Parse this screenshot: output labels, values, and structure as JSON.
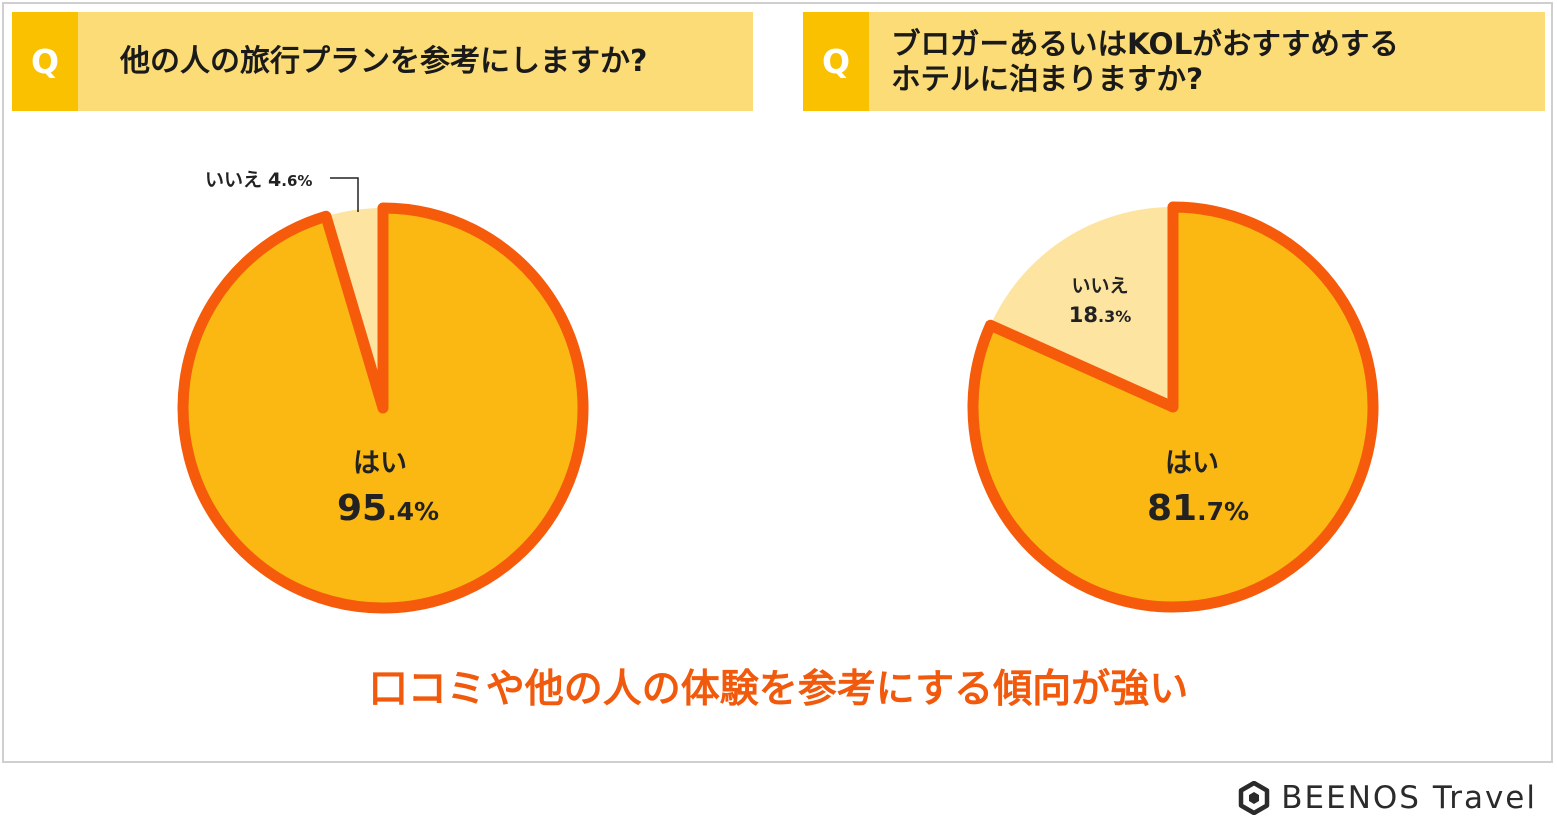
{
  "chart_data": [
    {
      "type": "pie",
      "question_tag": "Q",
      "title": "他の人の旅行プランを参考にしますか?",
      "slices": [
        {
          "label": "はい",
          "value": 95.4,
          "value_main": "95",
          "value_decimal": ".4%",
          "color": "#fbb812"
        },
        {
          "label": "いいえ",
          "value": 4.6,
          "value_main": "4",
          "value_decimal": ".6%",
          "color": "#fde4a1"
        }
      ],
      "outline_color": "#f55b0b"
    },
    {
      "type": "pie",
      "question_tag": "Q",
      "title_lines": [
        "ブロガーあるいはKOLがおすすめする",
        "ホテルに泊まりますか?"
      ],
      "slices": [
        {
          "label": "はい",
          "value": 81.7,
          "value_main": "81",
          "value_decimal": ".7%",
          "color": "#fbb812"
        },
        {
          "label": "いいえ",
          "value": 18.3,
          "value_main": "18",
          "value_decimal": ".3%",
          "color": "#fde4a1"
        }
      ],
      "outline_color": "#f55b0b"
    }
  ],
  "conclusion": "口コミや他の人の体験を参考にする傾向が強い",
  "footer": {
    "brand": "BEENOS Travel",
    "logo_icon": "hexagon-logo-icon"
  }
}
